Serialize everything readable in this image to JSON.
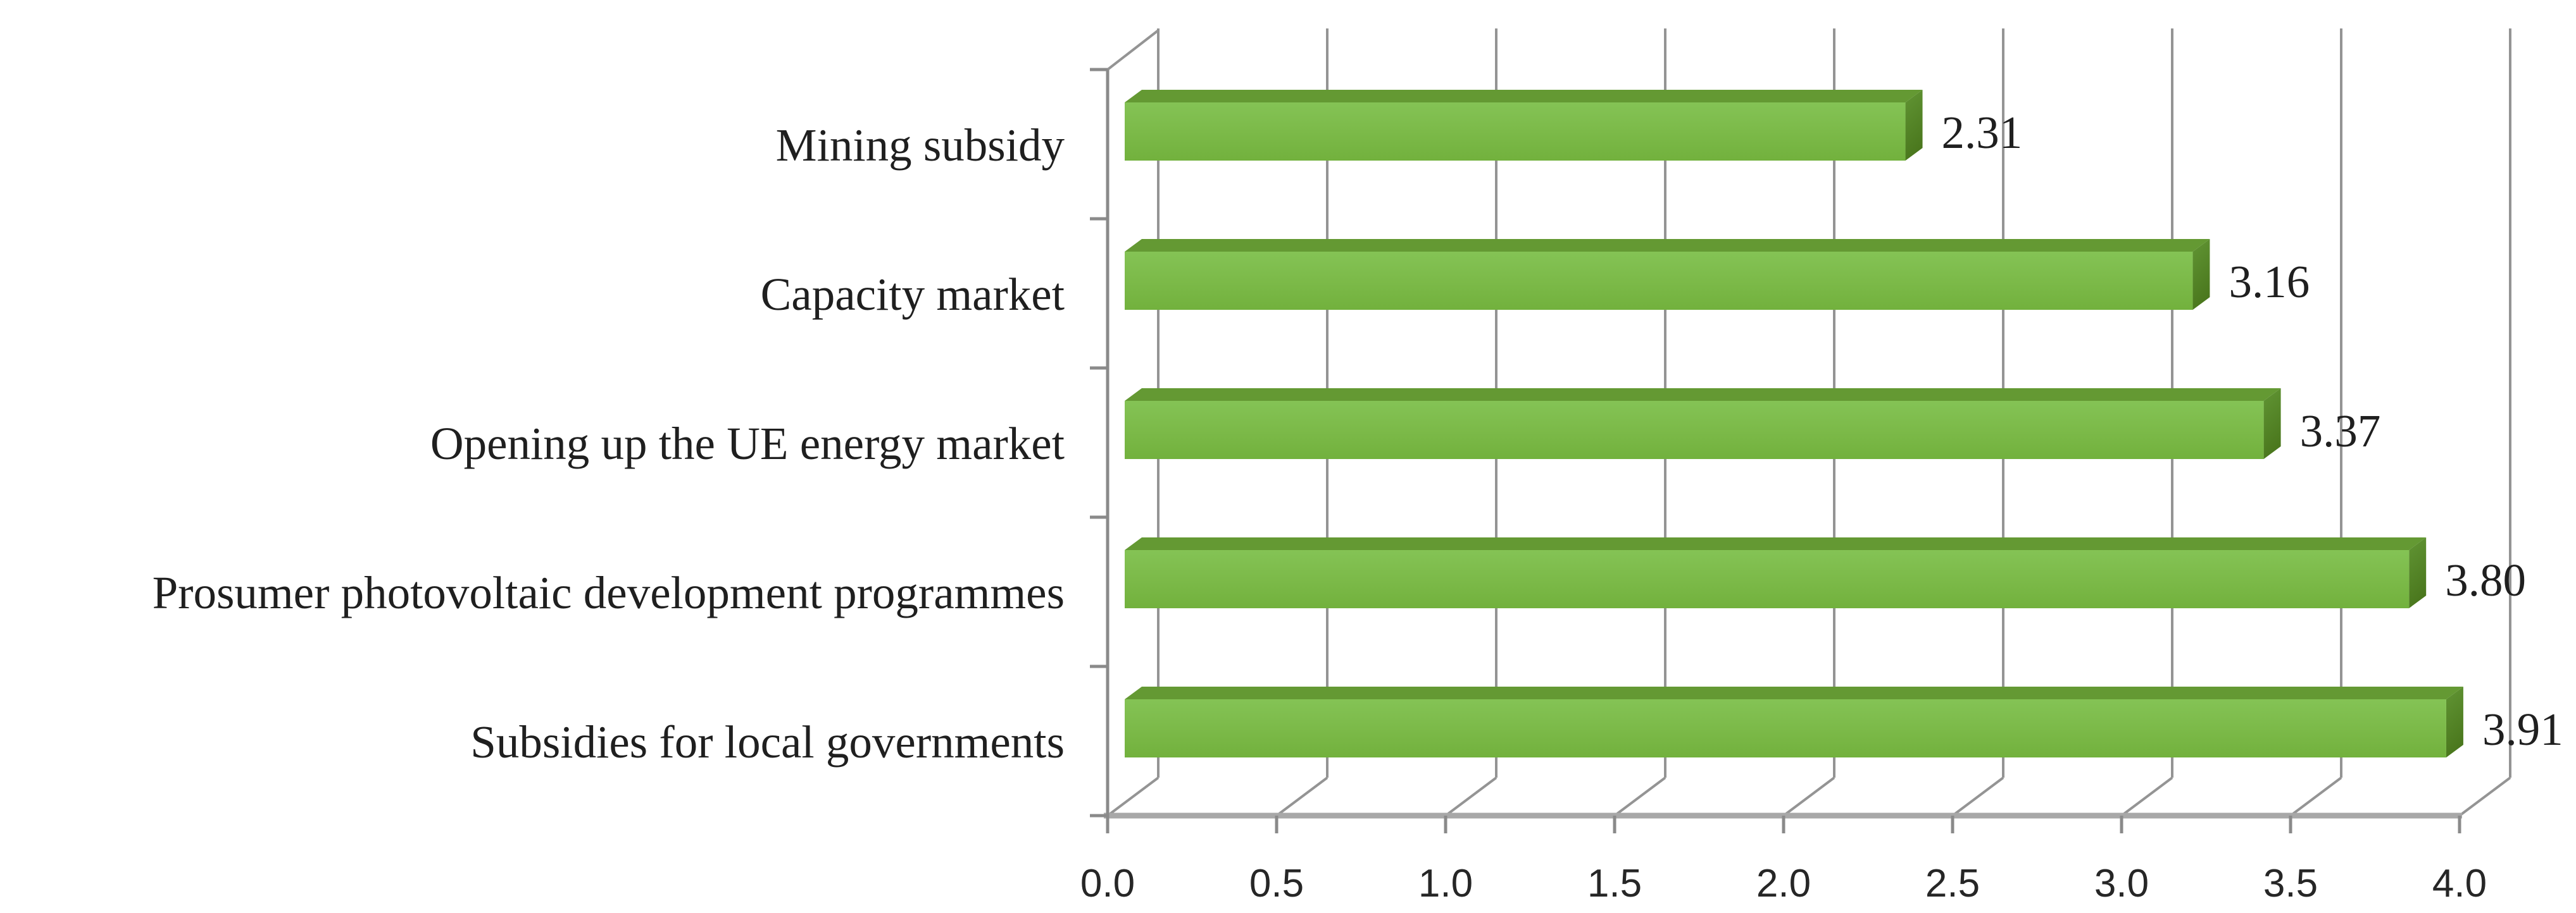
{
  "figure": {
    "background": "#ffffff",
    "title": ""
  },
  "chart_data": {
    "type": "bar",
    "orientation": "horizontal",
    "effect": "3d-oblique",
    "title": "",
    "xlabel": "",
    "ylabel": "",
    "categories": [
      "Mining subsidy",
      "Capacity market",
      "Opening up the UE energy market",
      "Prosumer photovoltaic development programmes",
      "Subsidies for local governments"
    ],
    "values": [
      2.31,
      3.16,
      3.37,
      3.8,
      3.91
    ],
    "value_labels": [
      "2.31",
      "3.16",
      "3.37",
      "3.80",
      "3.91"
    ],
    "xlim": [
      0.0,
      4.0
    ],
    "x_tick_step": 0.5,
    "x_tick_labels": [
      "0.0",
      "0.5",
      "1.0",
      "1.5",
      "2.0",
      "2.5",
      "3.0",
      "3.5",
      "4.0"
    ],
    "grid": true,
    "legend": "none",
    "colors": {
      "bar_face": "#7cba49",
      "bar_face_light": "#84c355",
      "bar_face_dark": "#72b13d",
      "bar_top": "#649933",
      "bar_side_light": "#619534",
      "bar_side_dark": "#4a771d",
      "gridline": "#949494",
      "axis_line": "#8a8a8a",
      "front_edge": "#a8a8a8",
      "text": "#1f1f1f"
    }
  }
}
